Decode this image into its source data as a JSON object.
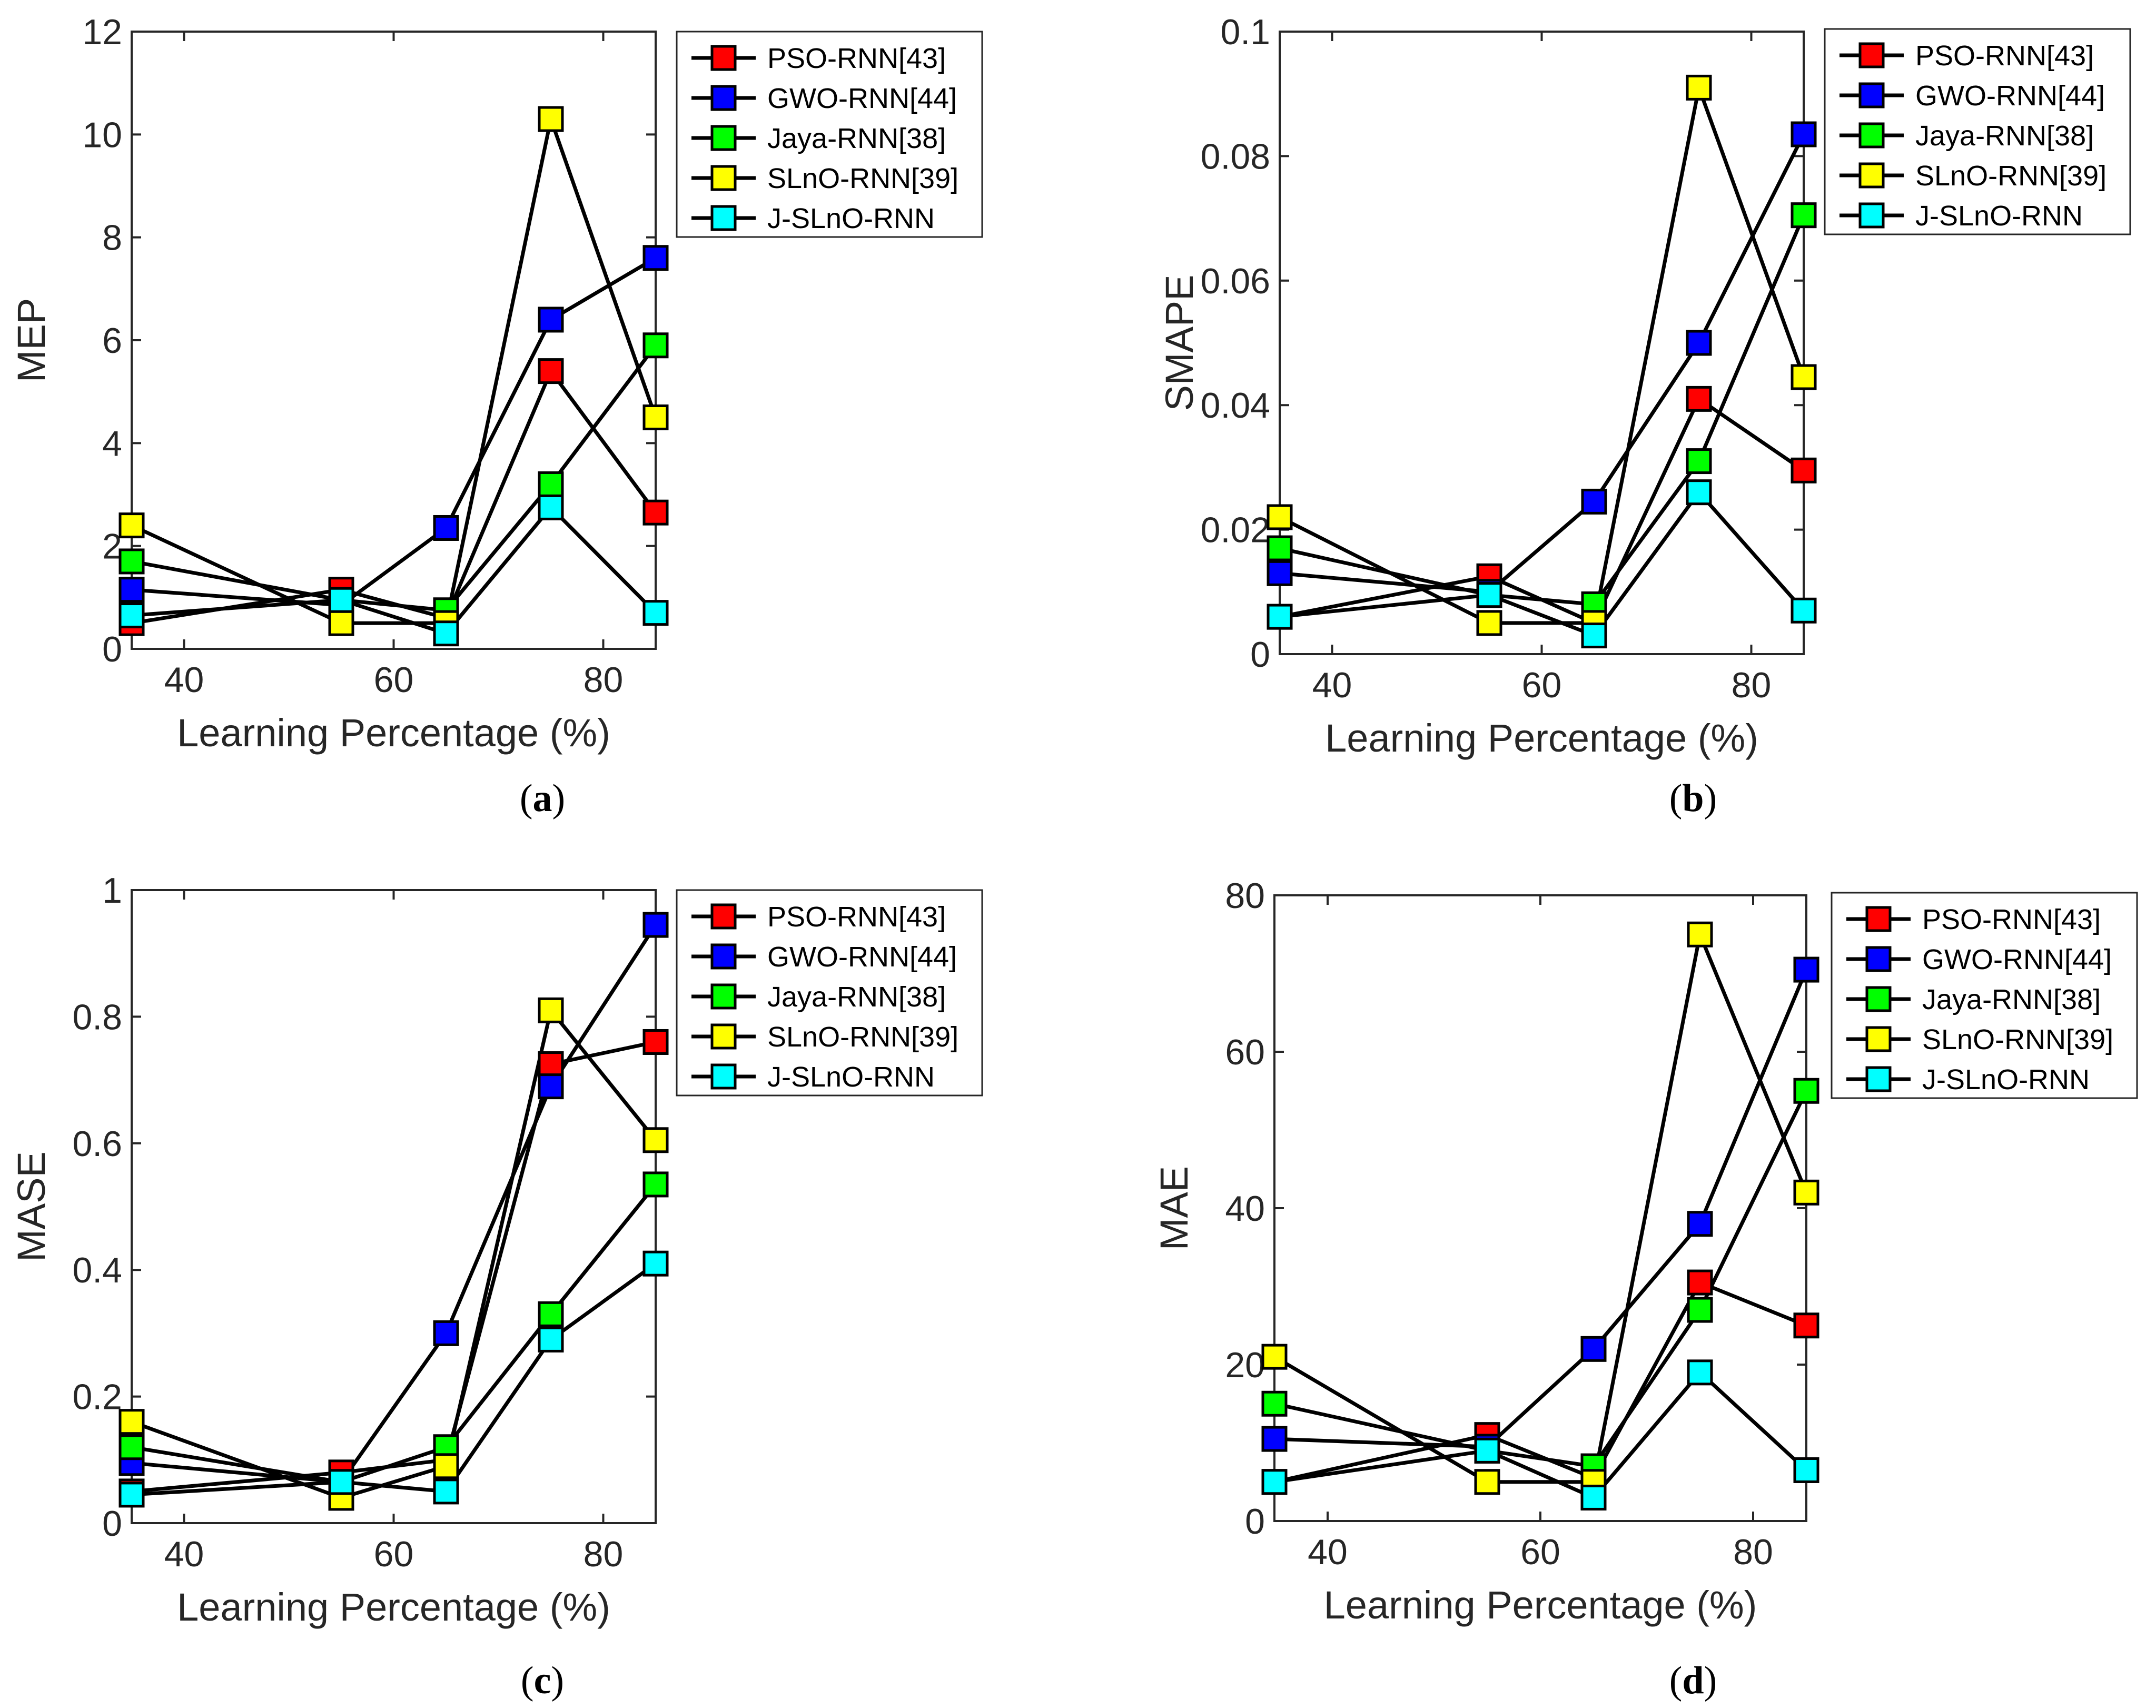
{
  "colors": {
    "PSO-RNN[43]": "#ff0000",
    "GWO-RNN[44]": "#0000ff",
    "Jaya-RNN[38]": "#00ff00",
    "SLnO-RNN[39]": "#ffff00",
    "J-SLnO-RNN": "#00ffff"
  },
  "chart_data": [
    {
      "type": "line",
      "caption_open": "(",
      "caption_letter": "a",
      "caption_close": ")",
      "xlabel": "Learning Percentage (%)",
      "ylabel": "MEP",
      "xlim": [
        35,
        85
      ],
      "ylim": [
        0,
        12
      ],
      "x": [
        35,
        55,
        65,
        75,
        85
      ],
      "xticks": [
        40,
        60,
        80
      ],
      "xtick_labels": [
        "40",
        "60",
        "80"
      ],
      "yticks": [
        0,
        2,
        4,
        6,
        8,
        10,
        12
      ],
      "ytick_labels": [
        "0",
        "2",
        "4",
        "6",
        "8",
        "10",
        "12"
      ],
      "legend": "right",
      "series": [
        {
          "name": "PSO-RNN[43]",
          "values": [
            0.5,
            1.15,
            0.6,
            5.4,
            2.65
          ]
        },
        {
          "name": "GWO-RNN[44]",
          "values": [
            1.15,
            0.85,
            2.35,
            6.4,
            7.6
          ]
        },
        {
          "name": "Jaya-RNN[38]",
          "values": [
            1.7,
            0.95,
            0.75,
            3.2,
            5.9
          ]
        },
        {
          "name": "SLnO-RNN[39]",
          "values": [
            2.4,
            0.5,
            0.5,
            10.3,
            4.5
          ]
        },
        {
          "name": "J-SLnO-RNN",
          "values": [
            0.65,
            0.95,
            0.3,
            2.75,
            0.7
          ]
        }
      ]
    },
    {
      "type": "line",
      "caption_open": "(",
      "caption_letter": "b",
      "caption_close": ")",
      "xlabel": "Learning Percentage (%)",
      "ylabel": "SMAPE",
      "xlim": [
        35,
        85
      ],
      "ylim": [
        0,
        0.1
      ],
      "x": [
        35,
        55,
        65,
        75,
        85
      ],
      "xticks": [
        40,
        60,
        80
      ],
      "xtick_labels": [
        "40",
        "60",
        "80"
      ],
      "yticks": [
        0,
        0.02,
        0.04,
        0.06,
        0.08,
        0.1
      ],
      "ytick_labels": [
        "0",
        "0.02",
        "0.04",
        "0.06",
        "0.08",
        "0.1"
      ],
      "legend": "right",
      "series": [
        {
          "name": "PSO-RNN[43]",
          "values": [
            0.006,
            0.0125,
            0.005,
            0.041,
            0.0295
          ]
        },
        {
          "name": "GWO-RNN[44]",
          "values": [
            0.013,
            0.01,
            0.0245,
            0.05,
            0.0835
          ]
        },
        {
          "name": "Jaya-RNN[38]",
          "values": [
            0.017,
            0.0095,
            0.008,
            0.031,
            0.0705
          ]
        },
        {
          "name": "SLnO-RNN[39]",
          "values": [
            0.022,
            0.005,
            0.005,
            0.091,
            0.0445
          ]
        },
        {
          "name": "J-SLnO-RNN",
          "values": [
            0.006,
            0.0095,
            0.003,
            0.026,
            0.007
          ]
        }
      ]
    },
    {
      "type": "line",
      "caption_open": "(",
      "caption_letter": "c",
      "caption_close": ")",
      "xlabel": "Learning Percentage (%)",
      "ylabel": "MASE",
      "xlim": [
        35,
        85
      ],
      "ylim": [
        0,
        1
      ],
      "x": [
        35,
        55,
        65,
        75,
        85
      ],
      "xticks": [
        40,
        60,
        80
      ],
      "xtick_labels": [
        "40",
        "60",
        "80"
      ],
      "yticks": [
        0,
        0.2,
        0.4,
        0.6,
        0.8,
        1
      ],
      "ytick_labels": [
        "0",
        "0.2",
        "0.4",
        "0.6",
        "0.8",
        "1"
      ],
      "legend": "right",
      "series": [
        {
          "name": "PSO-RNN[43]",
          "values": [
            0.05,
            0.08,
            0.1,
            0.725,
            0.76
          ]
        },
        {
          "name": "GWO-RNN[44]",
          "values": [
            0.095,
            0.065,
            0.3,
            0.69,
            0.945
          ]
        },
        {
          "name": "Jaya-RNN[38]",
          "values": [
            0.12,
            0.065,
            0.12,
            0.33,
            0.535
          ]
        },
        {
          "name": "SLnO-RNN[39]",
          "values": [
            0.16,
            0.04,
            0.09,
            0.81,
            0.605
          ]
        },
        {
          "name": "J-SLnO-RNN",
          "values": [
            0.045,
            0.065,
            0.05,
            0.29,
            0.41
          ]
        }
      ]
    },
    {
      "type": "line",
      "caption_open": "(",
      "caption_letter": "d",
      "caption_close": ")",
      "xlabel": "Learning Percentage (%)",
      "ylabel": "MAE",
      "xlim": [
        35,
        85
      ],
      "ylim": [
        0,
        80
      ],
      "x": [
        35,
        55,
        65,
        75,
        85
      ],
      "xticks": [
        40,
        60,
        80
      ],
      "xtick_labels": [
        "40",
        "60",
        "80"
      ],
      "yticks": [
        0,
        20,
        40,
        60,
        80
      ],
      "ytick_labels": [
        "0",
        "20",
        "40",
        "60",
        "80"
      ],
      "legend": "right",
      "series": [
        {
          "name": "PSO-RNN[43]",
          "values": [
            5,
            11,
            5.5,
            30.5,
            25
          ]
        },
        {
          "name": "GWO-RNN[44]",
          "values": [
            10.5,
            9.5,
            22,
            38,
            70.5
          ]
        },
        {
          "name": "Jaya-RNN[38]",
          "values": [
            15,
            9,
            7,
            27,
            55
          ]
        },
        {
          "name": "SLnO-RNN[39]",
          "values": [
            21,
            5,
            5,
            75,
            42
          ]
        },
        {
          "name": "J-SLnO-RNN",
          "values": [
            5,
            9,
            3,
            19,
            6.5
          ]
        }
      ]
    }
  ]
}
